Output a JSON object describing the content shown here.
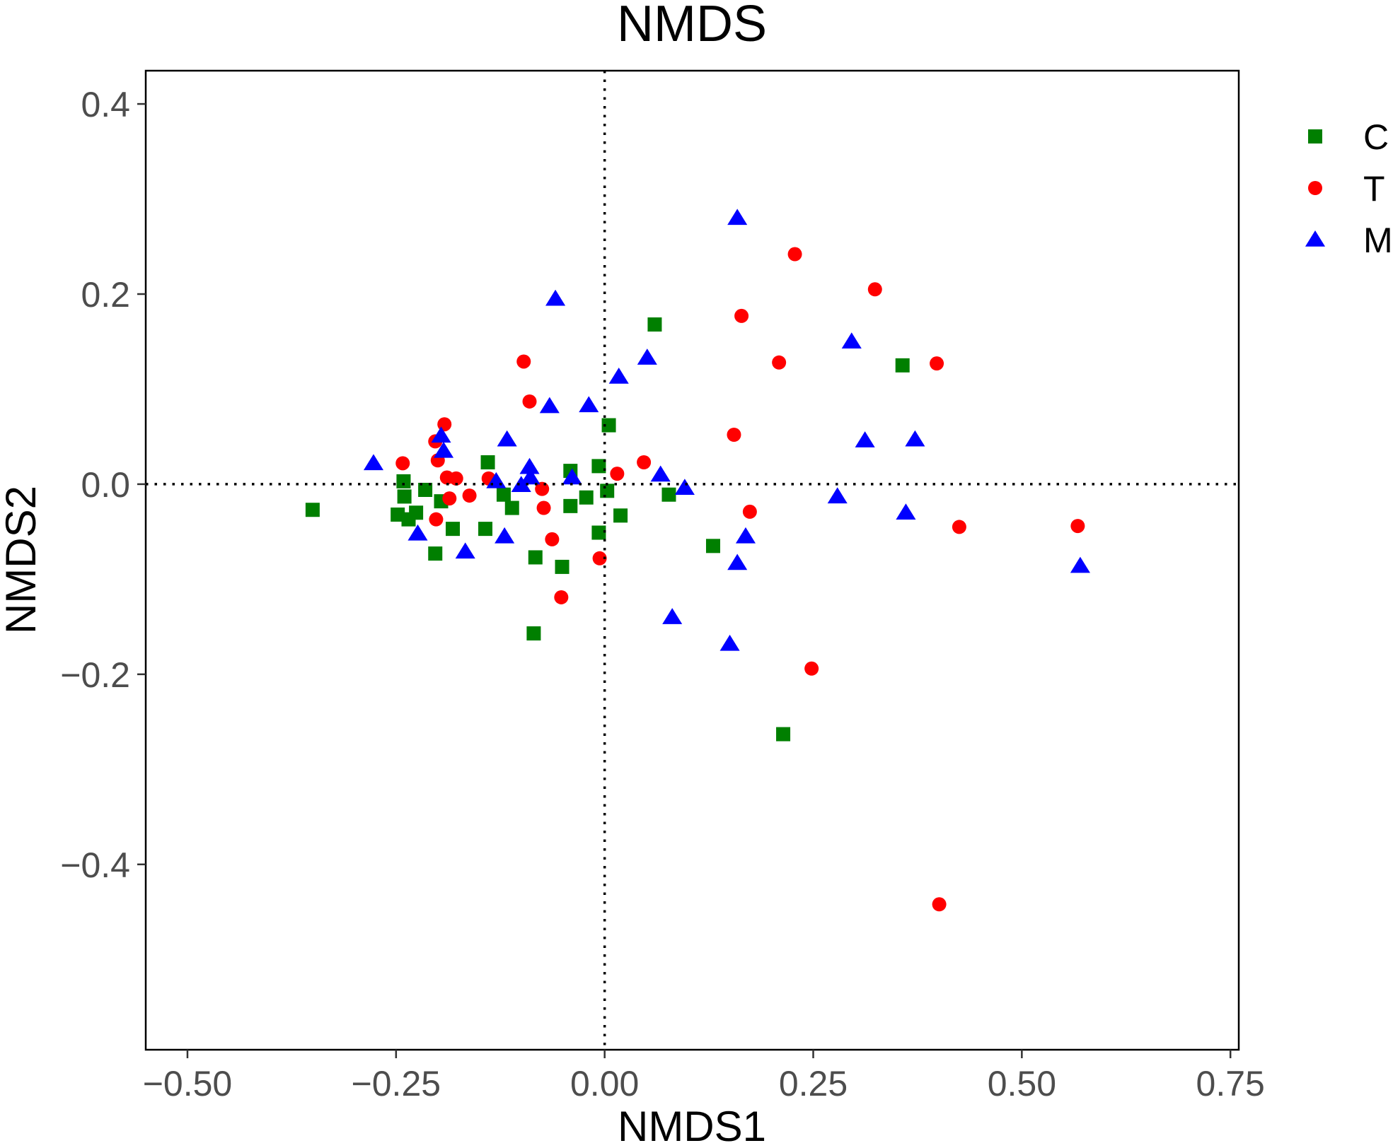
{
  "chart_data": {
    "type": "scatter",
    "title": "NMDS",
    "xlabel": "NMDS1",
    "ylabel": "NMDS2",
    "xlim": [
      -0.55,
      0.76
    ],
    "ylim": [
      -0.595,
      0.435
    ],
    "xticks": [
      -0.5,
      -0.25,
      0,
      0.25,
      0.5,
      0.75
    ],
    "xtick_labels": [
      "−0.50",
      "−0.25",
      "0.00",
      "0.25",
      "0.50",
      "0.75"
    ],
    "yticks": [
      -0.4,
      -0.2,
      0,
      0.2,
      0.4
    ],
    "ytick_labels": [
      "−0.4",
      "−0.2",
      "0.0",
      "0.2",
      "0.4"
    ],
    "reference_lines": {
      "x": 0,
      "y": 0,
      "style": "dotted"
    },
    "grid": false,
    "legend_position": "right",
    "series": [
      {
        "name": "C",
        "color": "#007f00",
        "marker": "square",
        "points": [
          [
            -0.35,
            -0.027
          ],
          [
            -0.248,
            -0.032
          ],
          [
            -0.241,
            0.003
          ],
          [
            -0.24,
            -0.013
          ],
          [
            -0.235,
            -0.037
          ],
          [
            -0.226,
            -0.03
          ],
          [
            -0.215,
            -0.006
          ],
          [
            -0.203,
            -0.073
          ],
          [
            -0.196,
            -0.018
          ],
          [
            -0.182,
            -0.047
          ],
          [
            -0.14,
            0.023
          ],
          [
            -0.143,
            -0.047
          ],
          [
            -0.121,
            -0.011
          ],
          [
            -0.111,
            -0.025
          ],
          [
            -0.083,
            -0.077
          ],
          [
            -0.085,
            -0.157
          ],
          [
            -0.051,
            -0.087
          ],
          [
            -0.041,
            0.014
          ],
          [
            -0.041,
            -0.023
          ],
          [
            -0.022,
            -0.014
          ],
          [
            -0.007,
            0.019
          ],
          [
            -0.007,
            -0.051
          ],
          [
            0.003,
            -0.007
          ],
          [
            0.005,
            0.062
          ],
          [
            0.019,
            -0.033
          ],
          [
            0.06,
            0.168
          ],
          [
            0.077,
            -0.011
          ],
          [
            0.13,
            -0.065
          ],
          [
            0.214,
            -0.263
          ],
          [
            0.357,
            0.125
          ]
        ]
      },
      {
        "name": "T",
        "color": "#ff0000",
        "marker": "circle",
        "points": [
          [
            -0.242,
            0.022
          ],
          [
            -0.203,
            0.045
          ],
          [
            -0.2,
            0.025
          ],
          [
            -0.202,
            -0.037
          ],
          [
            -0.192,
            0.063
          ],
          [
            -0.189,
            0.007
          ],
          [
            -0.186,
            -0.015
          ],
          [
            -0.178,
            0.006
          ],
          [
            -0.162,
            -0.012
          ],
          [
            -0.139,
            0.006
          ],
          [
            -0.097,
            0.129
          ],
          [
            -0.09,
            0.087
          ],
          [
            -0.075,
            -0.005
          ],
          [
            -0.073,
            -0.025
          ],
          [
            -0.063,
            -0.058
          ],
          [
            -0.052,
            -0.119
          ],
          [
            -0.006,
            -0.078
          ],
          [
            0.015,
            0.011
          ],
          [
            0.047,
            0.023
          ],
          [
            0.155,
            0.052
          ],
          [
            0.164,
            0.177
          ],
          [
            0.174,
            -0.029
          ],
          [
            0.209,
            0.128
          ],
          [
            0.228,
            0.242
          ],
          [
            0.248,
            -0.194
          ],
          [
            0.324,
            0.205
          ],
          [
            0.398,
            0.127
          ],
          [
            0.401,
            -0.442
          ],
          [
            0.425,
            -0.045
          ],
          [
            0.567,
            -0.044
          ]
        ]
      },
      {
        "name": "M",
        "color": "#0000ff",
        "marker": "triangle",
        "points": [
          [
            -0.277,
            0.022
          ],
          [
            -0.224,
            -0.052
          ],
          [
            -0.196,
            0.051
          ],
          [
            -0.193,
            0.035
          ],
          [
            -0.167,
            -0.071
          ],
          [
            -0.13,
            0.003
          ],
          [
            -0.117,
            0.047
          ],
          [
            -0.12,
            -0.055
          ],
          [
            -0.1,
            -0.001
          ],
          [
            -0.09,
            0.018
          ],
          [
            -0.089,
            0.007
          ],
          [
            -0.066,
            0.082
          ],
          [
            -0.059,
            0.195
          ],
          [
            -0.039,
            0.007
          ],
          [
            -0.019,
            0.083
          ],
          [
            0.017,
            0.113
          ],
          [
            0.051,
            0.133
          ],
          [
            0.067,
            0.01
          ],
          [
            0.081,
            -0.14
          ],
          [
            0.096,
            -0.004
          ],
          [
            0.15,
            -0.168
          ],
          [
            0.159,
            0.28
          ],
          [
            0.159,
            -0.083
          ],
          [
            0.169,
            -0.055
          ],
          [
            0.279,
            -0.013
          ],
          [
            0.296,
            0.15
          ],
          [
            0.312,
            0.046
          ],
          [
            0.361,
            -0.03
          ],
          [
            0.372,
            0.047
          ],
          [
            0.57,
            -0.086
          ]
        ]
      }
    ]
  }
}
